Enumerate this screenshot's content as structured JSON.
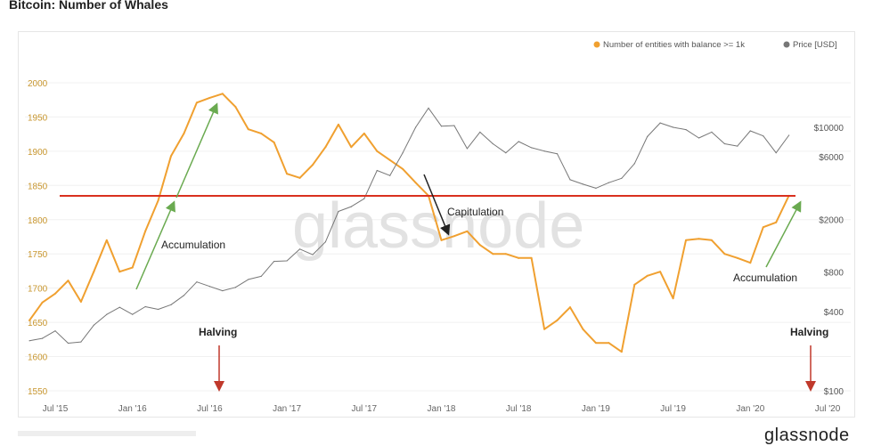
{
  "title": "Bitcoin: Number of Whales",
  "logo_text": "glassnode",
  "chart_data": {
    "type": "line",
    "title": "Bitcoin: Number of Whales",
    "legend": {
      "placement": "top-right",
      "entries": [
        {
          "label": "Number of entities with balance >= 1k",
          "color": "#f0a030"
        },
        {
          "label": "Price [USD]",
          "color": "#777777"
        }
      ]
    },
    "x": [
      "May 2015",
      "Jun 2015",
      "Jul 2015",
      "Aug 2015",
      "Sep 2015",
      "Oct 2015",
      "Nov 2015",
      "Dec 2015",
      "Jan 2016",
      "Feb 2016",
      "Mar 2016",
      "Apr 2016",
      "May 2016",
      "Jun 2016",
      "Jul 2016",
      "Aug 2016",
      "Sep 2016",
      "Oct 2016",
      "Nov 2016",
      "Dec 2016",
      "Jan 2017",
      "Feb 2017",
      "Mar 2017",
      "Apr 2017",
      "May 2017",
      "Jun 2017",
      "Jul 2017",
      "Aug 2017",
      "Sep 2017",
      "Oct 2017",
      "Nov 2017",
      "Dec 2017",
      "Jan 2018",
      "Feb 2018",
      "Mar 2018",
      "Apr 2018",
      "May 2018",
      "Jun 2018",
      "Jul 2018",
      "Aug 2018",
      "Sep 2018",
      "Oct 2018",
      "Nov 2018",
      "Dec 2018",
      "Jan 2019",
      "Feb 2019",
      "Mar 2019",
      "Apr 2019",
      "May 2019",
      "Jun 2019",
      "Jul 2019",
      "Aug 2019",
      "Sep 2019",
      "Oct 2019",
      "Nov 2019",
      "Dec 2019",
      "Jan 2020",
      "Feb 2020",
      "Mar 2020",
      "Apr 2020"
    ],
    "x_start_month_offset": -2,
    "series": [
      {
        "name": "Number of entities with balance >= 1k",
        "axis": "left",
        "color": "#f0a030",
        "values": [
          1653,
          1679,
          1692,
          1711,
          1680,
          1724,
          1770,
          1724,
          1730,
          1783,
          1828,
          1893,
          1926,
          1971,
          1978,
          1984,
          1965,
          1932,
          1926,
          1913,
          1867,
          1861,
          1880,
          1906,
          1939,
          1906,
          1926,
          1900,
          1887,
          1874,
          1854,
          1835,
          1770,
          1776,
          1783,
          1763,
          1750,
          1750,
          1744,
          1744,
          1640,
          1653,
          1672,
          1640,
          1620,
          1620,
          1607,
          1705,
          1718,
          1724,
          1685,
          1770,
          1772,
          1770,
          1750,
          1744,
          1737,
          1789,
          1796,
          1835
        ]
      },
      {
        "name": "Price [USD]",
        "axis": "right",
        "color": "#777777",
        "values": [
          240,
          250,
          285,
          230,
          235,
          315,
          380,
          430,
          380,
          435,
          415,
          450,
          530,
          670,
          620,
          575,
          610,
          700,
          740,
          960,
          970,
          1190,
          1080,
          1350,
          2300,
          2500,
          2870,
          4700,
          4300,
          6400,
          10000,
          14000,
          10200,
          10300,
          6900,
          9200,
          7500,
          6400,
          7800,
          7000,
          6600,
          6300,
          4000,
          3700,
          3450,
          3800,
          4100,
          5300,
          8500,
          10800,
          10000,
          9600,
          8300,
          9200,
          7500,
          7200,
          9400,
          8600,
          6400,
          8700
        ]
      }
    ],
    "left_axis": {
      "ticks": [
        "1550",
        "1600",
        "1650",
        "1700",
        "1750",
        "1800",
        "1850",
        "1900",
        "1950",
        "2000"
      ],
      "ylim": [
        1550,
        2000
      ]
    },
    "right_axis": {
      "scale": "log",
      "ticks": [
        {
          "label": "$100",
          "value": 100
        },
        {
          "label": "$400",
          "value": 400
        },
        {
          "label": "$800",
          "value": 800
        },
        {
          "label": "$2000",
          "value": 2000
        },
        {
          "label": "$6000",
          "value": 6000
        },
        {
          "label": "$10000",
          "value": 10000
        }
      ]
    },
    "x_ticks": [
      "Jul '15",
      "Jan '16",
      "Jul '16",
      "Jan '17",
      "Jul '17",
      "Jan '18",
      "Jul '18",
      "Jan '19",
      "Jul '19",
      "Jan '20",
      "Jul '20"
    ],
    "grid": true,
    "reference_line": {
      "value": 1835,
      "color": "#d9301f"
    },
    "annotations": {
      "accumulation_1": "Accumulation",
      "capitulation": "Capitulation",
      "accumulation_2": "Accumulation",
      "halving_1": "Halving",
      "halving_2": "Halving"
    },
    "watermark": "glassnode"
  }
}
